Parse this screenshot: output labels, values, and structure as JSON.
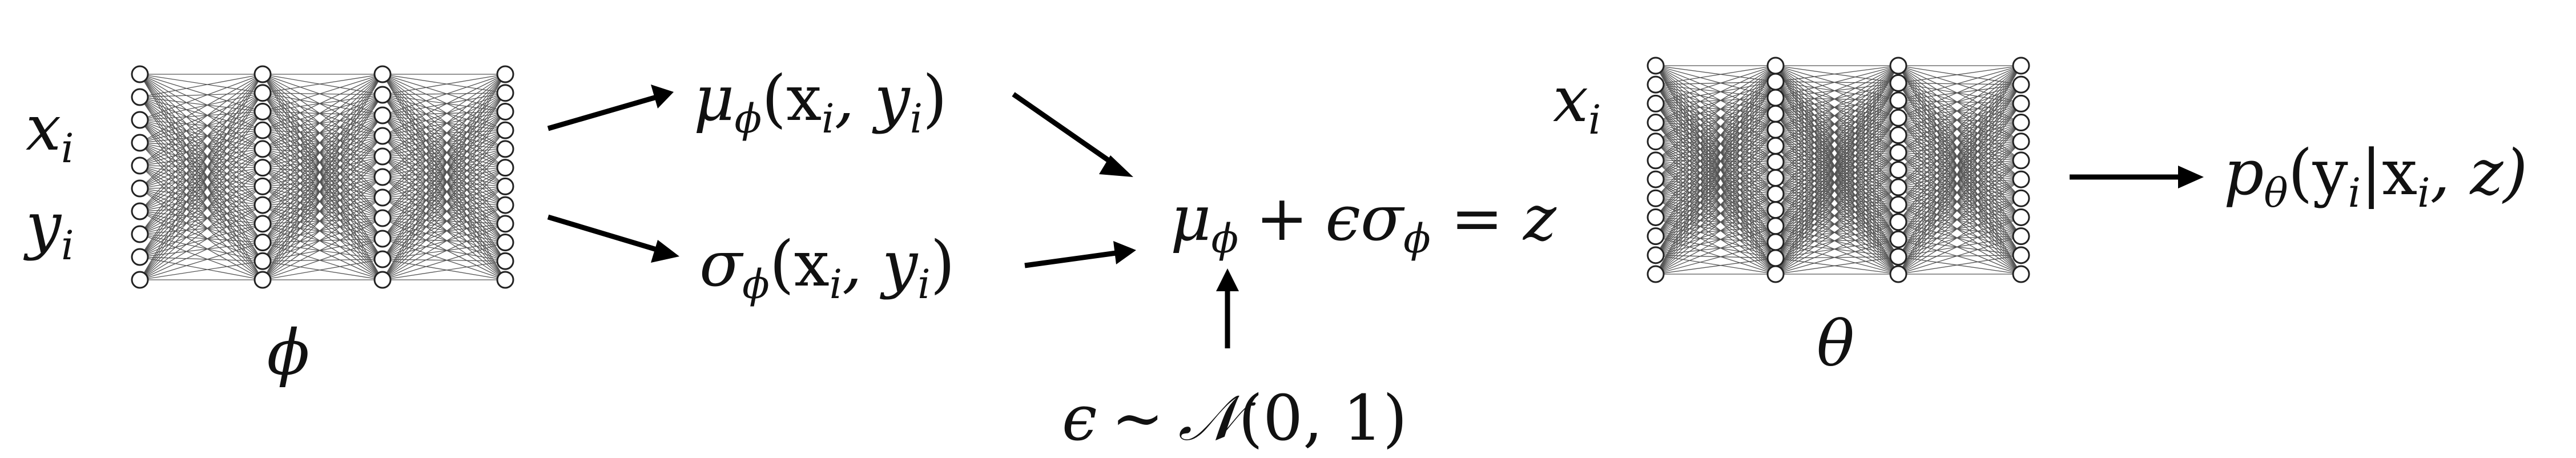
{
  "encoder": {
    "inputs": [
      "x",
      "y"
    ],
    "input_subscript": "i",
    "param": "ϕ",
    "layers": [
      10,
      12,
      11,
      12
    ]
  },
  "decoder": {
    "input": "x",
    "input_subscript": "i",
    "param": "θ",
    "layers": [
      12,
      14,
      13,
      12
    ]
  },
  "mu": {
    "base": "μ",
    "sub": "ϕ",
    "args": "(x",
    "args_sub": "i",
    "args_mid": ", y",
    "args_sub2": "i",
    "args_end": ")"
  },
  "sigma": {
    "base": "σ",
    "sub": "ϕ",
    "args": "(x",
    "args_sub": "i",
    "args_mid": ", y",
    "args_sub2": "i",
    "args_end": ")"
  },
  "reparam": {
    "mu": "μ",
    "mu_sub": "ϕ",
    "plus": "+",
    "eps": "ϵσ",
    "sig_sub": "ϕ",
    "eq": "=",
    "z": "z"
  },
  "noise": {
    "eps": "ϵ",
    "sim": "∼",
    "dist": "𝒩",
    "args": "(0, 1)"
  },
  "output": {
    "p": "p",
    "p_sub": "θ",
    "open": "(y",
    "y_sub": "i",
    "bar": "|x",
    "x_sub": "i",
    "rest": ", z)"
  }
}
